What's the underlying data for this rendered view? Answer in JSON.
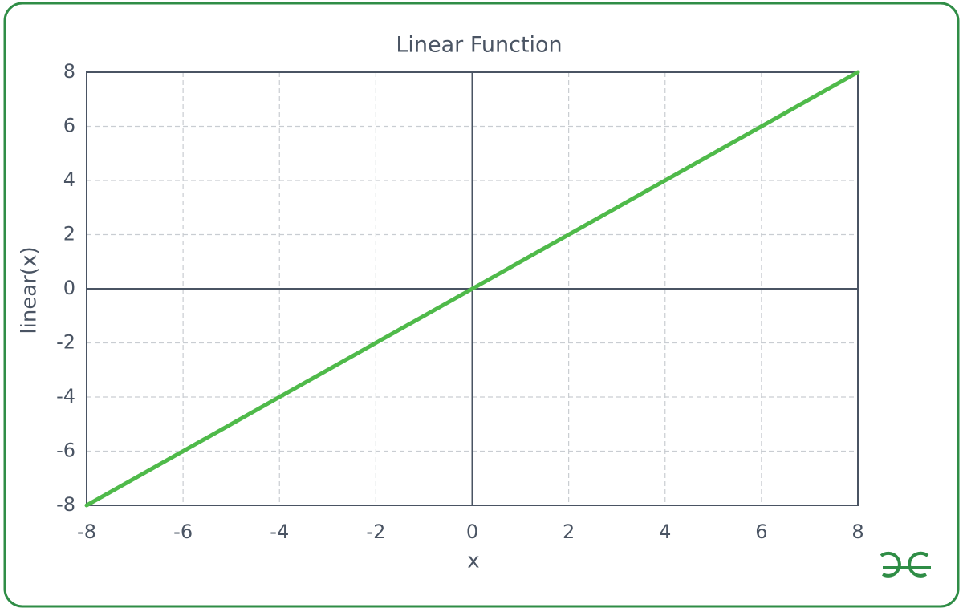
{
  "chart_data": {
    "type": "line",
    "title": "Linear Function",
    "x_label": "x",
    "y_label": "linear(x)",
    "x": [
      -8,
      0,
      8
    ],
    "values": [
      -8,
      0,
      8
    ],
    "color": "#4fba4a",
    "xlim": [
      -8,
      8
    ],
    "ylim": [
      -8,
      8
    ],
    "xticks": [
      -8,
      -6,
      -4,
      -2,
      0,
      2,
      4,
      6,
      8
    ],
    "yticks": [
      -8,
      -6,
      -4,
      -2,
      0,
      2,
      4,
      6,
      8
    ],
    "grid": true,
    "zero_lines": true
  }
}
